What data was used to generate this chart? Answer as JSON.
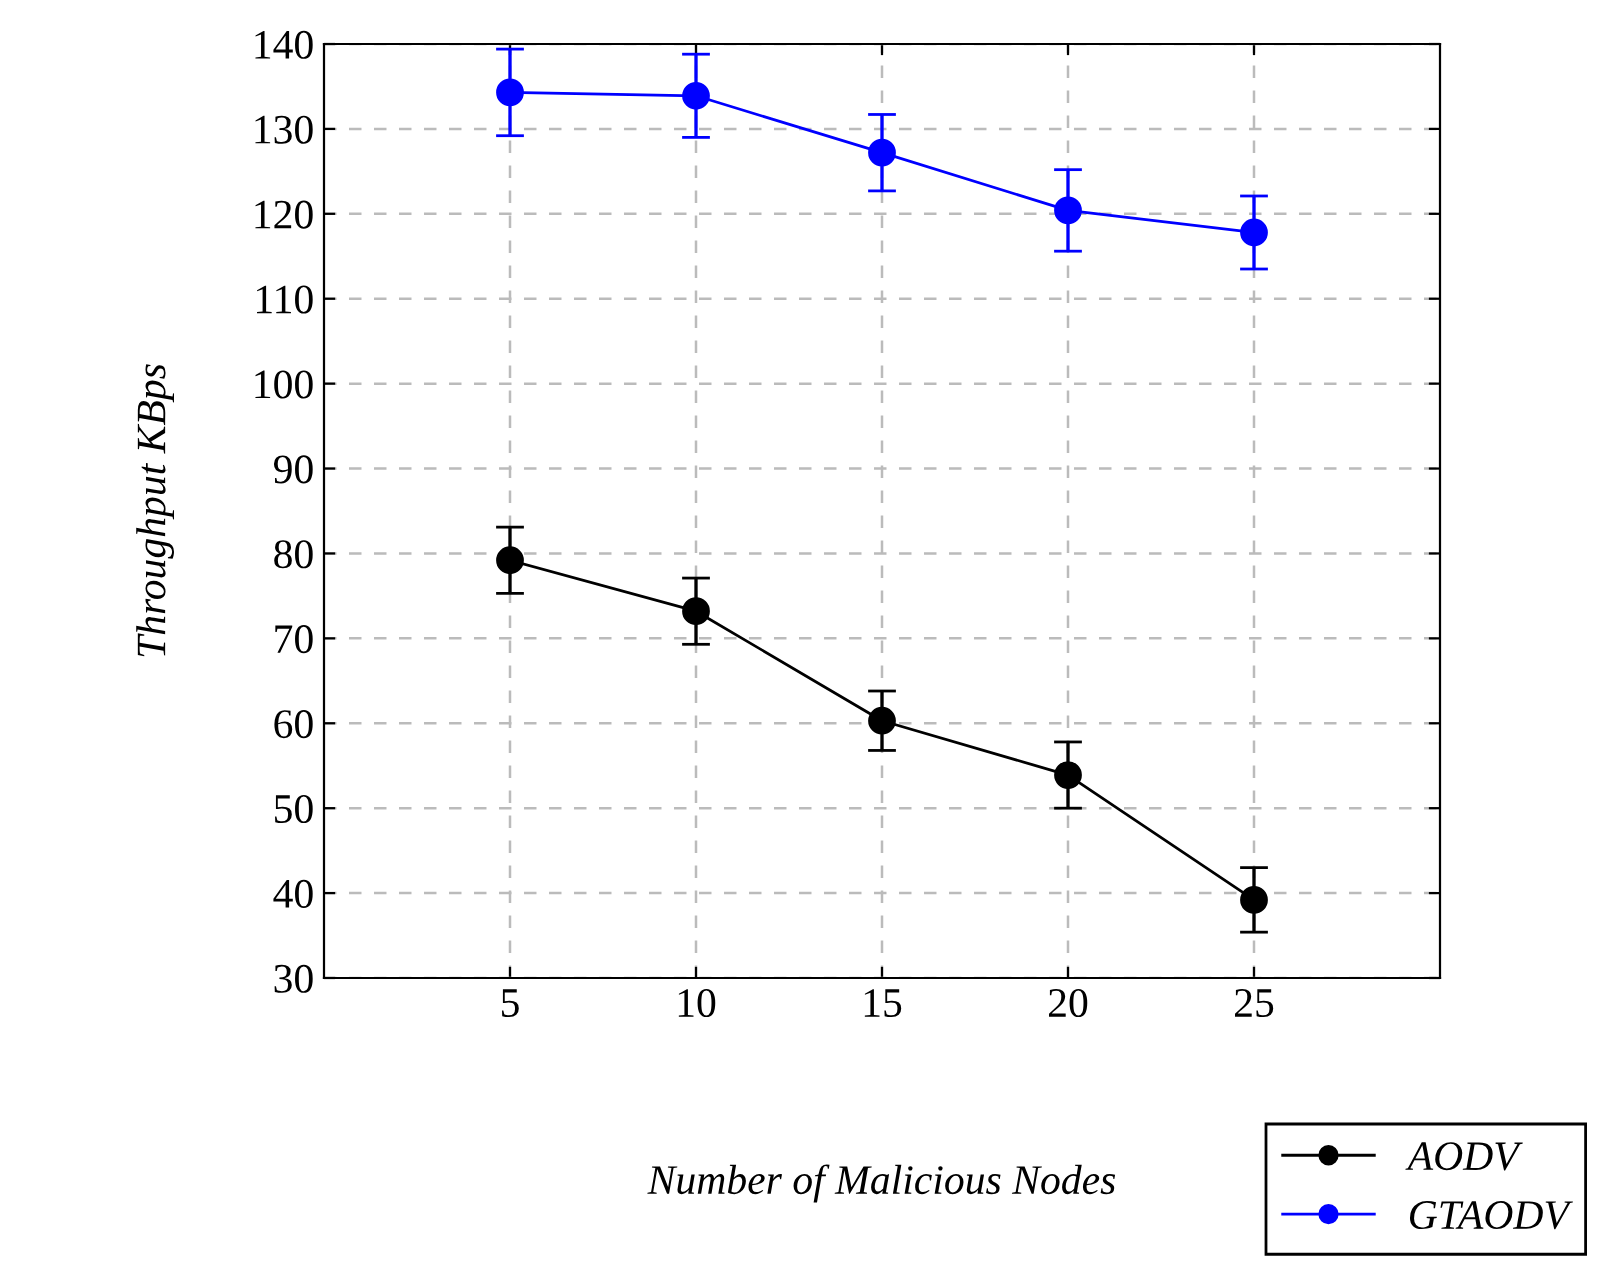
{
  "chart_data": {
    "type": "line",
    "xlabel": "Number of Malicious Nodes",
    "ylabel": "Throughput KBps",
    "x": [
      5,
      10,
      15,
      20,
      25
    ],
    "series": [
      {
        "name": "AODV",
        "color": "#000000",
        "values": [
          79.2,
          73.2,
          60.3,
          53.9,
          39.2
        ],
        "errors": [
          3.9,
          3.9,
          3.5,
          3.9,
          3.8
        ]
      },
      {
        "name": "GTAODV",
        "color": "#0000ff",
        "values": [
          134.3,
          133.9,
          127.2,
          120.4,
          117.8
        ],
        "errors": [
          5.1,
          4.9,
          4.5,
          4.8,
          4.3
        ]
      }
    ],
    "xlim": [
      0,
      30
    ],
    "xticks": [
      5,
      10,
      15,
      20,
      25
    ],
    "ylim": [
      30,
      140
    ],
    "yticks": [
      30,
      40,
      50,
      60,
      70,
      80,
      90,
      100,
      110,
      120,
      130,
      140
    ],
    "grid": true,
    "legend": "bottom right",
    "marker": "circle",
    "line_style": "solid"
  }
}
